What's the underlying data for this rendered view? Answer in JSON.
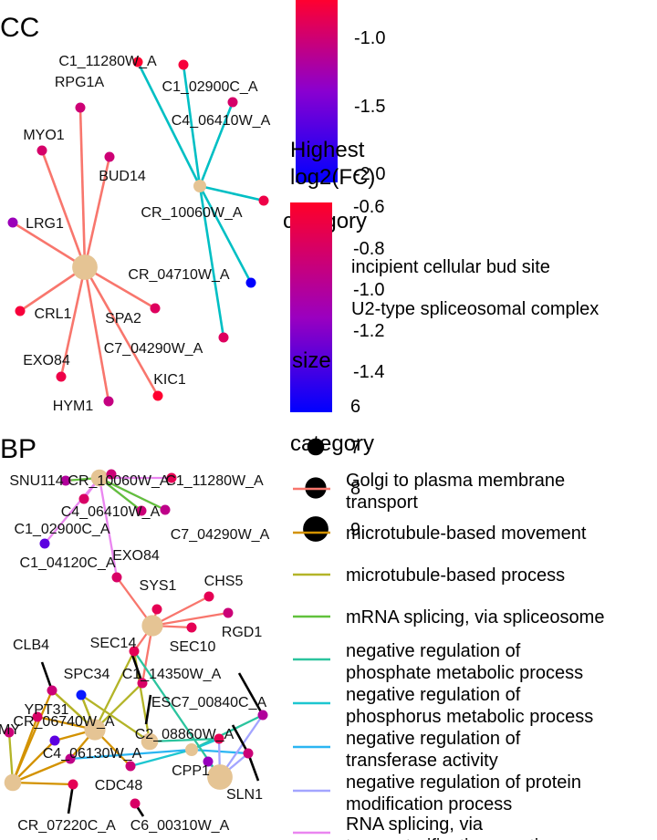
{
  "chart_data": {
    "type": "network",
    "panels": [
      {
        "title": "CC",
        "hubs": [
          {
            "id": "h_bud",
            "size": 9,
            "category": "incipient cellular bud site"
          },
          {
            "id": "h_u2",
            "size": 6,
            "category": "U2-type spliceosomal complex"
          }
        ],
        "genes": [
          {
            "label": "C1_11280W_A",
            "fc": -0.6,
            "hub": "h_u2"
          },
          {
            "label": "C1_02900C_A",
            "fc": -0.65,
            "hub": "h_u2"
          },
          {
            "label": "C4_06410W_A",
            "fc": -0.85,
            "hub": "h_u2"
          },
          {
            "label": "CR_10060W_A",
            "fc": -0.7,
            "hub": "h_u2"
          },
          {
            "label": "CR_04710W_A",
            "fc": -2.0,
            "hub": "h_u2"
          },
          {
            "label": "C7_04290W_A",
            "fc": -0.8,
            "hub": "h_u2"
          },
          {
            "label": "RPG1A",
            "fc": -0.9,
            "hub": "h_bud"
          },
          {
            "label": "MYO1",
            "fc": -0.85,
            "hub": "h_bud"
          },
          {
            "label": "BUD14",
            "fc": -0.9,
            "hub": "h_bud"
          },
          {
            "label": "LRG1",
            "fc": -1.2,
            "hub": "h_bud"
          },
          {
            "label": "CRL1",
            "fc": -0.65,
            "hub": "h_bud"
          },
          {
            "label": "SPA2",
            "fc": -0.8,
            "hub": "h_bud"
          },
          {
            "label": "EXO84",
            "fc": -0.7,
            "hub": "h_bud"
          },
          {
            "label": "HYM1",
            "fc": -0.95,
            "hub": "h_bud"
          },
          {
            "label": "KIC1",
            "fc": -0.6,
            "hub": "h_bud"
          }
        ],
        "legend": {
          "color_title": "Highest log2(FC)",
          "color_ticks": [
            "-1.0",
            "-1.5",
            "-2.0"
          ],
          "category_title": "category",
          "categories": [
            "incipient cellular bud site",
            "U2-type spliceosomal complex"
          ],
          "category_colors": [
            "#F8766D",
            "#00BFC4"
          ]
        }
      },
      {
        "title": "BP",
        "genes": [
          {
            "label": "SNU114"
          },
          {
            "label": "CR_10060W_A"
          },
          {
            "label": "C1_11280W_A"
          },
          {
            "label": "C4_06410W_A"
          },
          {
            "label": "C1_02900C_A"
          },
          {
            "label": "C7_04290W_A"
          },
          {
            "label": "C1_04120C_A"
          },
          {
            "label": "EXO84"
          },
          {
            "label": "SYS1"
          },
          {
            "label": "CHS5"
          },
          {
            "label": "RGD1"
          },
          {
            "label": "SEC10"
          },
          {
            "label": "SEC14"
          },
          {
            "label": "C1_14350W_A"
          },
          {
            "label": "CLB4"
          },
          {
            "label": "SPC34"
          },
          {
            "label": "ESC7_00840C_A"
          },
          {
            "label": "YPT31"
          },
          {
            "label": "CR_06740W_A"
          },
          {
            "label": "C2_08860W_A"
          },
          {
            "label": "C4_06130W_A"
          },
          {
            "label": "CPP1"
          },
          {
            "label": "CDC48"
          },
          {
            "label": "SLN1"
          },
          {
            "label": "CR_07220C_A"
          },
          {
            "label": "C6_00310W_A"
          },
          {
            "label": "MY"
          }
        ],
        "legend": {
          "color_title": "Highest log2(FC)",
          "color_ticks": [
            "-0.6",
            "-0.8",
            "-1.0",
            "-1.2",
            "-1.4"
          ],
          "category_title": "category",
          "categories": [
            "Golgi to plasma membrane transport",
            "microtubule-based movement",
            "microtubule-based process",
            "mRNA splicing, via spliceosome",
            "negative regulation of phosphate metabolic process",
            "negative regulation of phosphorus metabolic process",
            "negative regulation of transferase activity",
            "negative regulation of protein modification process",
            "RNA splicing, via transesterification reactions"
          ],
          "category_colors": [
            "#F8766D",
            "#D39200",
            "#B3B428",
            "#61C13C",
            "#2BC49E",
            "#1DC6D0",
            "#2BB5F2",
            "#A3A5FF",
            "#EA86F0"
          ],
          "size_title": "size",
          "size_ticks": [
            "6",
            "7",
            "8",
            "9"
          ]
        }
      }
    ]
  }
}
